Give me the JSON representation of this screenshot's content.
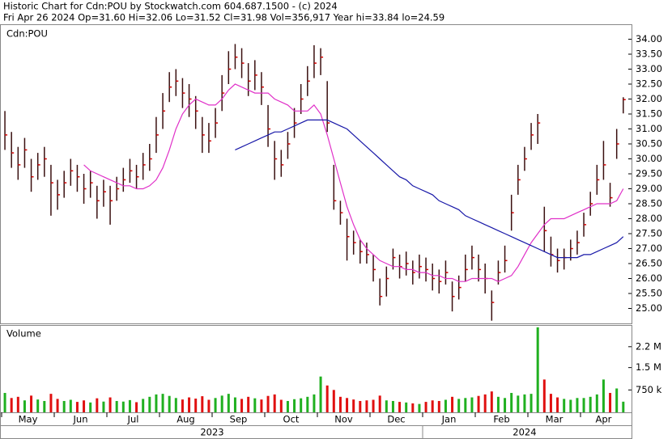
{
  "chart_data": {
    "type": "ohlc",
    "title": "Historic Chart for Cdn:POU by Stockwatch.com 604.687.1500 - (c) 2024",
    "subtitle": "Fri Apr 26 2024  Op=31.60  Hi=32.06  Lo=31.52  Cl=31.98  Vol=356,917  Year hi=33.84  lo=24.59",
    "symbol": "Cdn:POU",
    "volume_label": "Volume",
    "ylim": [
      24.5,
      34.5
    ],
    "yticks": [
      {
        "value": 25,
        "label": "25.00"
      },
      {
        "value": 25.5,
        "label": "25.50"
      },
      {
        "value": 26,
        "label": "26.00"
      },
      {
        "value": 26.5,
        "label": "26.50"
      },
      {
        "value": 27,
        "label": "27.00"
      },
      {
        "value": 27.5,
        "label": "27.50"
      },
      {
        "value": 28,
        "label": "28.00"
      },
      {
        "value": 28.5,
        "label": "28.50"
      },
      {
        "value": 29,
        "label": "29.00"
      },
      {
        "value": 29.5,
        "label": "29.50"
      },
      {
        "value": 30,
        "label": "30.00"
      },
      {
        "value": 30.5,
        "label": "30.50"
      },
      {
        "value": 31,
        "label": "31.00"
      },
      {
        "value": 31.5,
        "label": "31.50"
      },
      {
        "value": 32,
        "label": "32.00"
      },
      {
        "value": 32.5,
        "label": "32.50"
      },
      {
        "value": 33,
        "label": "33.00"
      },
      {
        "value": 33.5,
        "label": "33.50"
      },
      {
        "value": 34,
        "label": "34.00"
      }
    ],
    "volume_ylim": [
      0,
      2900000
    ],
    "volume_yticks": [
      {
        "value": 750000,
        "label": "750 k"
      },
      {
        "value": 1500000,
        "label": "1.5 M"
      },
      {
        "value": 2200000,
        "label": "2.2 M"
      }
    ],
    "bar_color": "#3a1010",
    "close_color": "#d00000",
    "up_color": "#20b020",
    "down_color": "#e01010",
    "ma_short_color": "#e030c8",
    "ma_long_color": "#1818a8",
    "periods": [
      {
        "label": "2023",
        "months": [
          {
            "label": "May",
            "close": [
              30.8,
              30.2,
              29.8,
              30.3,
              29.4,
              29.8,
              30.0,
              29.2
            ],
            "high": [
              31.6,
              30.9,
              30.4,
              30.7,
              30.0,
              30.2,
              30.4,
              29.8
            ],
            "low": [
              30.3,
              29.7,
              29.3,
              29.7,
              28.9,
              29.3,
              29.4,
              28.1
            ],
            "volume": [
              650000,
              480000,
              520000,
              400000,
              560000,
              430000,
              380000,
              620000
            ],
            "ma_short": [
              null,
              null,
              null,
              null,
              null,
              null,
              null,
              null
            ],
            "ma_long": [
              null,
              null,
              null,
              null,
              null,
              null,
              null,
              null
            ]
          },
          {
            "label": "Jun",
            "close": [
              28.8,
              29.2,
              29.6,
              29.4,
              29.0,
              29.2,
              28.6,
              28.9
            ],
            "high": [
              29.3,
              29.6,
              30.0,
              29.8,
              29.5,
              29.6,
              29.1,
              29.3
            ],
            "low": [
              28.3,
              28.7,
              29.1,
              28.9,
              28.5,
              28.7,
              28.0,
              28.4
            ],
            "volume": [
              450000,
              380000,
              420000,
              350000,
              400000,
              330000,
              470000,
              360000
            ],
            "ma_short": [
              null,
              null,
              null,
              null,
              29.8,
              29.6,
              29.5,
              29.4
            ],
            "ma_long": [
              null,
              null,
              null,
              null,
              null,
              null,
              null,
              null
            ]
          },
          {
            "label": "Jul",
            "close": [
              28.6,
              29.0,
              29.3,
              29.6,
              29.4,
              29.8,
              30.0,
              30.8
            ],
            "high": [
              29.1,
              29.4,
              29.7,
              30.0,
              29.8,
              30.2,
              30.5,
              31.4
            ],
            "low": [
              27.8,
              28.6,
              28.9,
              29.2,
              29.0,
              29.3,
              29.6,
              30.2
            ],
            "volume": [
              500000,
              380000,
              360000,
              410000,
              340000,
              450000,
              520000,
              600000
            ],
            "ma_short": [
              29.3,
              29.2,
              29.1,
              29.1,
              29.0,
              29.0,
              29.1,
              29.3
            ],
            "ma_long": [
              null,
              null,
              null,
              null,
              null,
              null,
              null,
              null
            ]
          },
          {
            "label": "Aug",
            "close": [
              31.6,
              32.4,
              32.6,
              32.2,
              32.0,
              31.6,
              30.8,
              30.6
            ],
            "high": [
              32.2,
              32.9,
              33.0,
              32.7,
              32.5,
              32.1,
              31.4,
              31.2
            ],
            "low": [
              31.0,
              31.9,
              32.1,
              31.7,
              31.4,
              31.0,
              30.2,
              30.2
            ],
            "volume": [
              620000,
              550000,
              480000,
              430000,
              500000,
              460000,
              540000,
              420000
            ],
            "ma_short": [
              29.7,
              30.3,
              31.0,
              31.5,
              31.8,
              32.0,
              31.9,
              31.8
            ],
            "ma_long": [
              null,
              null,
              null,
              null,
              null,
              null,
              null,
              null
            ]
          },
          {
            "label": "Sep",
            "close": [
              31.2,
              32.2,
              33.0,
              33.4,
              33.2,
              32.6,
              32.8,
              32.4
            ],
            "high": [
              31.7,
              32.8,
              33.6,
              33.84,
              33.7,
              33.2,
              33.3,
              32.9
            ],
            "low": [
              30.7,
              31.6,
              32.5,
              33.0,
              32.7,
              32.1,
              32.3,
              31.8
            ],
            "volume": [
              480000,
              560000,
              620000,
              500000,
              450000,
              520000,
              470000,
              430000
            ],
            "ma_short": [
              31.8,
              32.0,
              32.3,
              32.5,
              32.4,
              32.3,
              32.2,
              32.2
            ],
            "ma_long": [
              null,
              null,
              null,
              30.3,
              30.4,
              30.5,
              30.6,
              30.7
            ]
          },
          {
            "label": "Oct",
            "close": [
              31.0,
              30.0,
              29.8,
              30.5,
              31.2,
              32.0,
              32.6,
              33.2
            ],
            "high": [
              31.8,
              30.6,
              30.3,
              30.9,
              31.7,
              32.5,
              33.1,
              33.8
            ],
            "low": [
              30.4,
              29.3,
              29.4,
              30.0,
              30.7,
              31.5,
              32.1,
              32.7
            ],
            "volume": [
              550000,
              600000,
              420000,
              380000,
              440000,
              470000,
              520000,
              600000
            ],
            "ma_short": [
              32.2,
              32.0,
              31.9,
              31.8,
              31.6,
              31.6,
              31.6,
              31.8
            ],
            "ma_long": [
              30.8,
              30.9,
              30.9,
              31.0,
              31.1,
              31.2,
              31.3,
              31.3
            ]
          },
          {
            "label": "Nov",
            "close": [
              33.4,
              31.2,
              28.6,
              28.2,
              27.4,
              27.2,
              26.9,
              26.8
            ],
            "high": [
              33.7,
              32.6,
              29.8,
              28.6,
              28.0,
              27.6,
              27.3,
              27.2
            ],
            "low": [
              32.8,
              30.9,
              28.3,
              27.8,
              26.6,
              26.8,
              26.5,
              26.5
            ],
            "volume": [
              1200000,
              900000,
              750000,
              520000,
              480000,
              430000,
              380000,
              400000
            ],
            "ma_short": [
              31.5,
              30.8,
              30.0,
              29.2,
              28.4,
              27.8,
              27.3,
              27.0
            ],
            "ma_long": [
              31.3,
              31.3,
              31.2,
              31.1,
              31.0,
              30.8,
              30.6,
              30.4
            ]
          },
          {
            "label": "Dec",
            "close": [
              26.3,
              25.4,
              26.0,
              26.7,
              26.4,
              26.5,
              26.2,
              26.4
            ],
            "high": [
              26.8,
              26.0,
              26.4,
              27.0,
              26.8,
              26.9,
              26.6,
              26.8
            ],
            "low": [
              25.9,
              25.1,
              25.4,
              26.3,
              26.0,
              26.1,
              25.8,
              26.0
            ],
            "volume": [
              420000,
              560000,
              400000,
              380000,
              350000,
              330000,
              300000,
              280000
            ],
            "ma_short": [
              26.8,
              26.6,
              26.5,
              26.4,
              26.4,
              26.3,
              26.3,
              26.2
            ],
            "ma_long": [
              30.2,
              30.0,
              29.8,
              29.6,
              29.4,
              29.3,
              29.1,
              29.0
            ]
          }
        ]
      },
      {
        "label": "2024",
        "months": [
          {
            "label": "Jan",
            "close": [
              26.3,
              26.0,
              25.9,
              26.2,
              25.4,
              25.7,
              26.3,
              26.7
            ],
            "high": [
              26.7,
              26.5,
              26.3,
              26.6,
              25.9,
              26.1,
              26.8,
              27.1
            ],
            "low": [
              25.9,
              25.6,
              25.5,
              25.8,
              24.9,
              25.3,
              25.9,
              26.3
            ],
            "volume": [
              350000,
              400000,
              380000,
              420000,
              520000,
              450000,
              480000,
              500000
            ],
            "ma_short": [
              26.2,
              26.1,
              26.1,
              26.0,
              26.0,
              25.9,
              25.9,
              26.0
            ],
            "ma_long": [
              28.9,
              28.8,
              28.6,
              28.5,
              28.4,
              28.3,
              28.1,
              28.0
            ]
          },
          {
            "label": "Feb",
            "close": [
              26.3,
              26.0,
              25.2,
              26.2,
              26.6,
              28.2,
              29.3,
              30.0
            ],
            "high": [
              26.8,
              26.5,
              25.6,
              26.6,
              27.1,
              28.8,
              29.8,
              30.4
            ],
            "low": [
              25.9,
              25.5,
              24.59,
              25.8,
              26.2,
              27.6,
              28.8,
              29.6
            ],
            "volume": [
              550000,
              600000,
              700000,
              520000,
              480000,
              650000,
              560000,
              600000
            ],
            "ma_short": [
              26.0,
              26.0,
              26.0,
              25.9,
              26.0,
              26.1,
              26.4,
              26.8
            ],
            "ma_long": [
              27.9,
              27.8,
              27.7,
              27.6,
              27.5,
              27.4,
              27.3,
              27.2
            ]
          },
          {
            "label": "Mar",
            "close": [
              30.8,
              31.2,
              27.6,
              26.8,
              26.6,
              26.7,
              27.0,
              27.2
            ],
            "high": [
              31.2,
              31.5,
              28.4,
              27.4,
              27.0,
              27.0,
              27.3,
              27.6
            ],
            "low": [
              30.3,
              30.5,
              26.9,
              26.4,
              26.2,
              26.3,
              26.6,
              26.8
            ],
            "volume": [
              620000,
              2850000,
              1100000,
              620000,
              500000,
              450000,
              420000,
              480000
            ],
            "ma_short": [
              27.2,
              27.5,
              27.8,
              28.0,
              28.0,
              28.0,
              28.1,
              28.2
            ],
            "ma_long": [
              27.1,
              27.0,
              26.9,
              26.8,
              26.7,
              26.7,
              26.7,
              26.7
            ]
          },
          {
            "label": "Apr",
            "close": [
              27.8,
              28.5,
              29.3,
              29.8,
              28.7,
              30.5,
              31.98
            ],
            "high": [
              28.2,
              28.9,
              29.8,
              30.6,
              29.2,
              31.0,
              32.06
            ],
            "low": [
              27.4,
              28.1,
              28.8,
              29.3,
              28.4,
              30.0,
              31.52
            ],
            "volume": [
              480000,
              520000,
              600000,
              1100000,
              650000,
              800000,
              356917
            ],
            "ma_short": [
              28.3,
              28.4,
              28.5,
              28.5,
              28.5,
              28.6,
              29.0
            ],
            "ma_long": [
              26.8,
              26.8,
              26.9,
              27.0,
              27.1,
              27.2,
              27.4
            ]
          }
        ]
      }
    ]
  }
}
